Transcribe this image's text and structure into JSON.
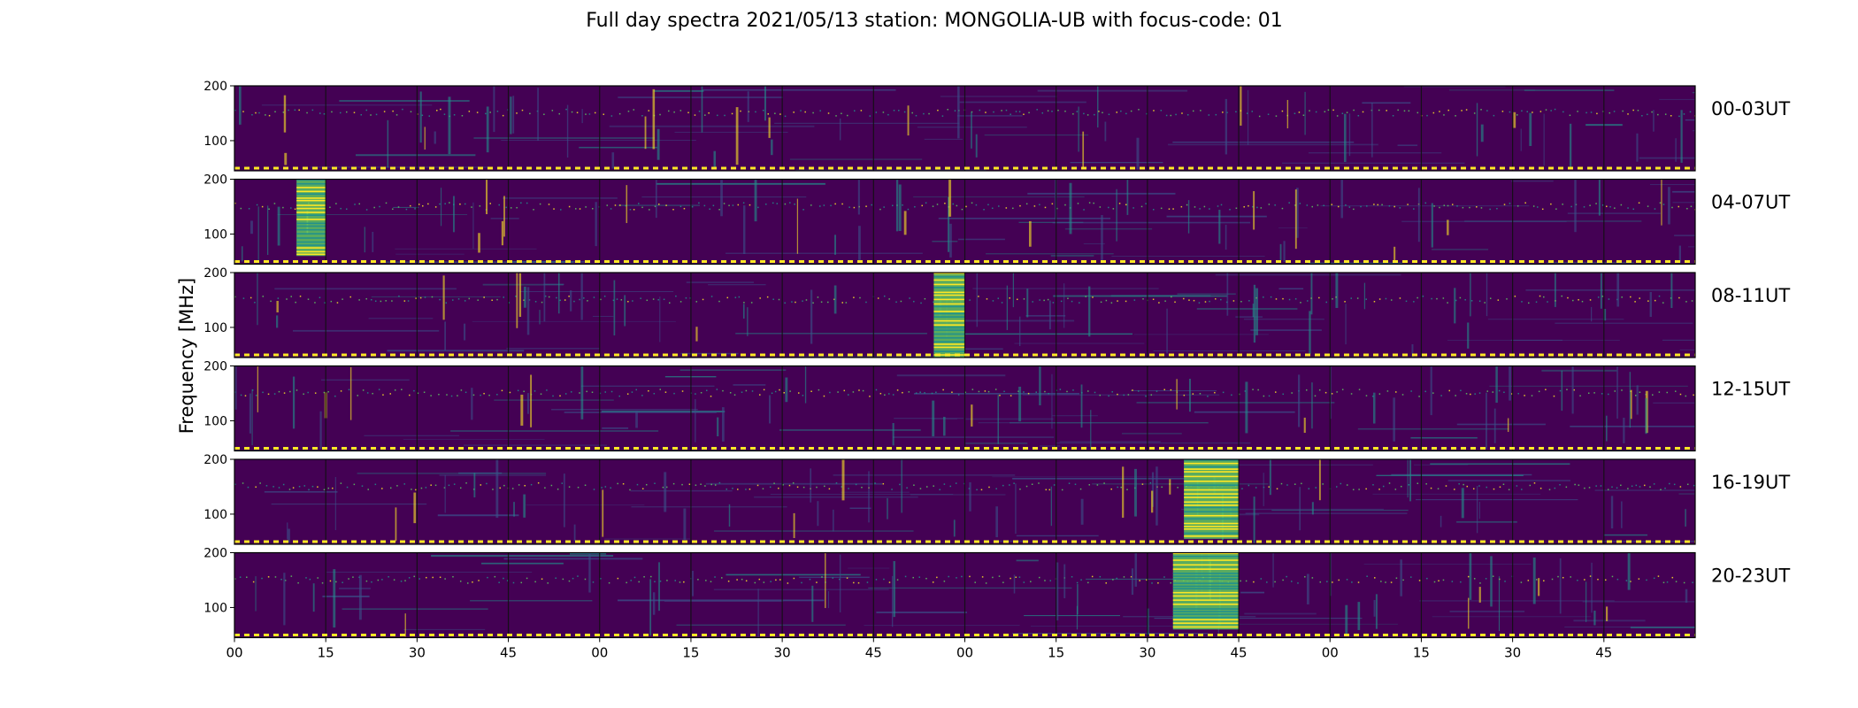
{
  "title": "Full day spectra 2021/05/13 station: MONGOLIA-UB with focus-code: 01",
  "chart_data": {
    "type": "heatmap",
    "title": "Full day spectra 2021/05/13 station: MONGOLIA-UB with focus-code: 01",
    "ylabel": "Frequency [MHz]",
    "xlabel": "",
    "ylim": [
      45,
      200
    ],
    "y_ticks": [
      "100",
      "200"
    ],
    "x_ticks": [
      "00",
      "15",
      "30",
      "45",
      "00",
      "15",
      "30",
      "45",
      "00",
      "15",
      "30",
      "45",
      "00",
      "15",
      "30",
      "45"
    ],
    "panel_labels": [
      "00-03UT",
      "04-07UT",
      "08-11UT",
      "12-15UT",
      "16-19UT",
      "20-23UT"
    ],
    "segments_per_row": 16,
    "colormap": [
      "#440154",
      "#3b528b",
      "#21918c",
      "#5ec962",
      "#fde725"
    ],
    "marker_color": "#fde725",
    "burst_segments": [
      {
        "row": 1,
        "segment": 0,
        "start": 0.68,
        "end": 1.0,
        "freq_low": 60,
        "freq_high": 200
      },
      {
        "row": 2,
        "segment": 7,
        "start": 0.66,
        "end": 1.0,
        "freq_low": 45,
        "freq_high": 200
      },
      {
        "row": 4,
        "segment": 10,
        "start": 0.4,
        "end": 1.0,
        "freq_low": 55,
        "freq_high": 200
      },
      {
        "row": 5,
        "segment": 10,
        "start": 0.28,
        "end": 1.0,
        "freq_low": 60,
        "freq_high": 200
      }
    ]
  }
}
